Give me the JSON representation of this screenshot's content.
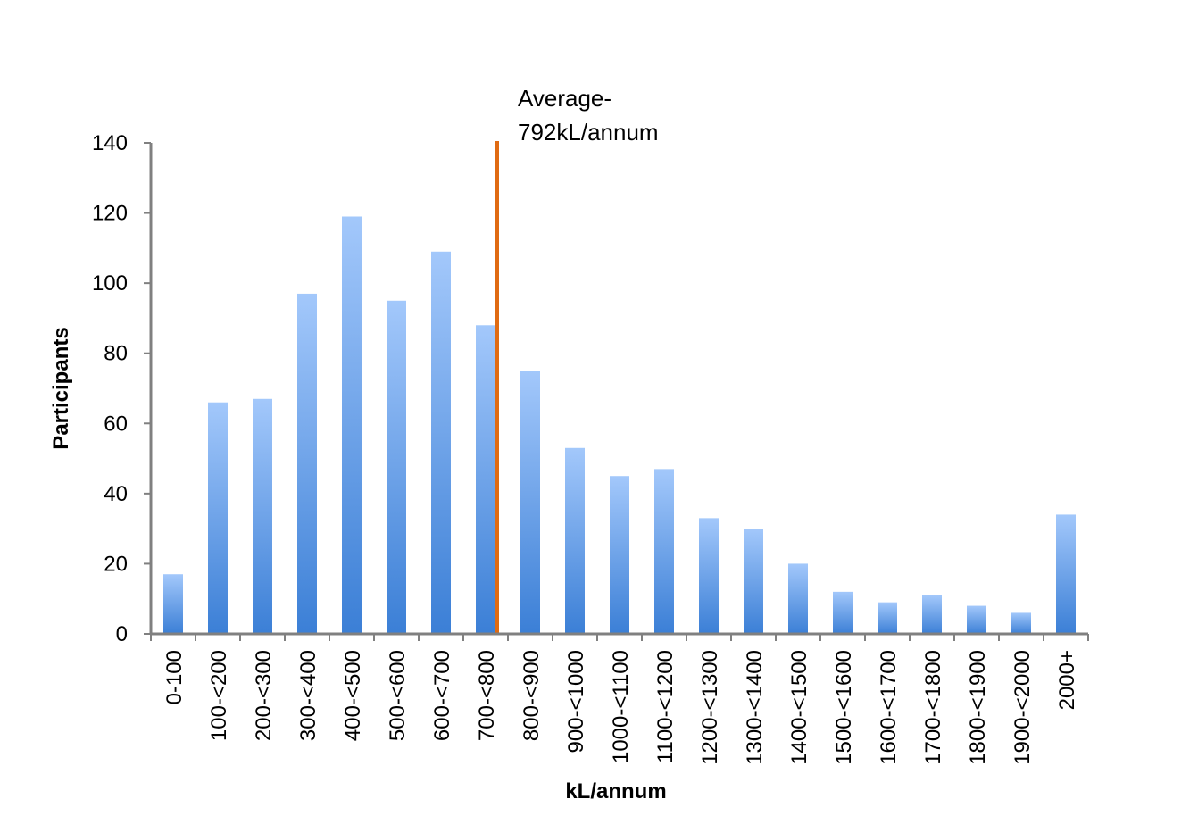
{
  "chart_data": {
    "type": "bar",
    "title": "",
    "xlabel": "kL/annum",
    "ylabel": "Participants",
    "ylim": [
      0,
      140
    ],
    "yticks": [
      0,
      20,
      40,
      60,
      80,
      100,
      120,
      140
    ],
    "categories": [
      "0-100",
      "100-<200",
      "200-<300",
      "300-<400",
      "400-<500",
      "500-<600",
      "600-<700",
      "700-<800",
      "800-<900",
      "900-<1000",
      "1000-<1100",
      "1100-<1200",
      "1200-<1300",
      "1300-<1400",
      "1400-<1500",
      "1500-<1600",
      "1600-<1700",
      "1700-<1800",
      "1800-<1900",
      "1900-<2000",
      "2000+"
    ],
    "values": [
      17,
      66,
      67,
      97,
      119,
      95,
      109,
      88,
      75,
      53,
      45,
      47,
      33,
      30,
      20,
      12,
      9,
      11,
      8,
      6,
      34
    ],
    "grid": false,
    "legend": "none",
    "average_line": {
      "label_line1": "Average-",
      "label_line2": "792kL/annum",
      "category_position": 7.75
    },
    "colors": {
      "bar_top": "#a3c8fb",
      "bar_bottom": "#3b7fd6",
      "average_line": "#e06b12",
      "axis": "#808080"
    }
  }
}
